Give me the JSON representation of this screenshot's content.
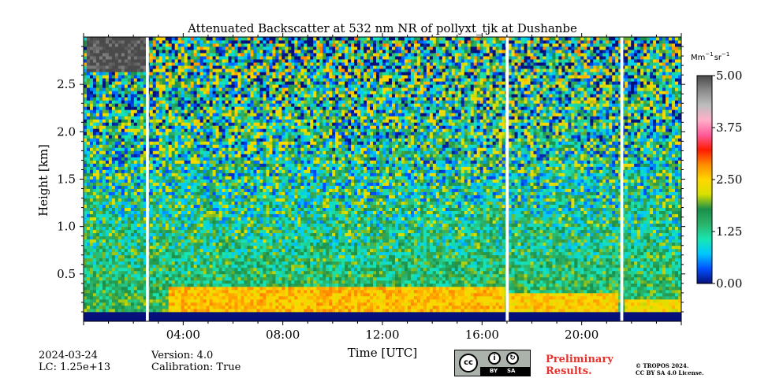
{
  "chart_data": {
    "type": "heatmap",
    "title": "Attenuated Backscatter at 532 nm NR of pollyxt_tjk at Dushanbe",
    "xlabel": "Time [UTC]",
    "ylabel": "Height [km]",
    "xlim_hours": [
      0,
      24
    ],
    "ylim_km": [
      0,
      3.0
    ],
    "x_ticks": [
      "04:00",
      "08:00",
      "12:00",
      "16:00",
      "20:00"
    ],
    "x_tick_values_hours": [
      4,
      8,
      12,
      16,
      20
    ],
    "y_ticks": [
      "0.5",
      "1.0",
      "1.5",
      "2.0",
      "2.5"
    ],
    "y_tick_values_km": [
      0.5,
      1.0,
      1.5,
      2.0,
      2.5
    ],
    "colorbar": {
      "label_main": "Mm",
      "label_sup1": "−1",
      "label_mid": "sr",
      "label_sup2": "−1",
      "min": 0.0,
      "max": 5.0,
      "ticks": [
        "0.00",
        "1.25",
        "2.50",
        "3.75",
        "5.00"
      ],
      "tick_values": [
        0.0,
        1.25,
        2.5,
        3.75,
        5.0
      ],
      "colors": [
        "#06107a",
        "#0050ff",
        "#00c8ff",
        "#18e6b0",
        "#2bb36b",
        "#1a8f4a",
        "#d8e000",
        "#ffd700",
        "#ff8c00",
        "#ff1a00",
        "#ff5a9a",
        "#ffb0c8",
        "#bdbdbd",
        "#8a8a8a",
        "#4a4a4a"
      ]
    },
    "data_gaps_hours": [
      [
        2.5,
        2.62
      ],
      [
        16.95,
        17.07
      ],
      [
        21.55,
        21.67
      ]
    ],
    "features": [
      {
        "type": "low_cloud_layer",
        "height_km": [
          2.65,
          3.0
        ],
        "time_hours": [
          0.1,
          2.5
        ],
        "level": 5.0
      },
      {
        "type": "aerosol_layer_high",
        "height_km": [
          0.1,
          0.35
        ],
        "time_hours": [
          3.4,
          16.9
        ],
        "level": 2.6
      },
      {
        "type": "surface_blind_zone",
        "height_km": [
          0.0,
          0.1
        ],
        "level": 0.0
      }
    ]
  },
  "footer": {
    "date": "2024-03-24",
    "lc": "LC: 1.25e+13",
    "version": "Version: 4.0",
    "calibration": "Calibration: True",
    "preliminary": [
      "Preliminary",
      "Results."
    ],
    "copyright": [
      "© TROPOS 2024.",
      "CC BY SA 4.0 License."
    ],
    "license_badge": {
      "cc": "cc",
      "by": "BY",
      "sa": "SA"
    }
  }
}
